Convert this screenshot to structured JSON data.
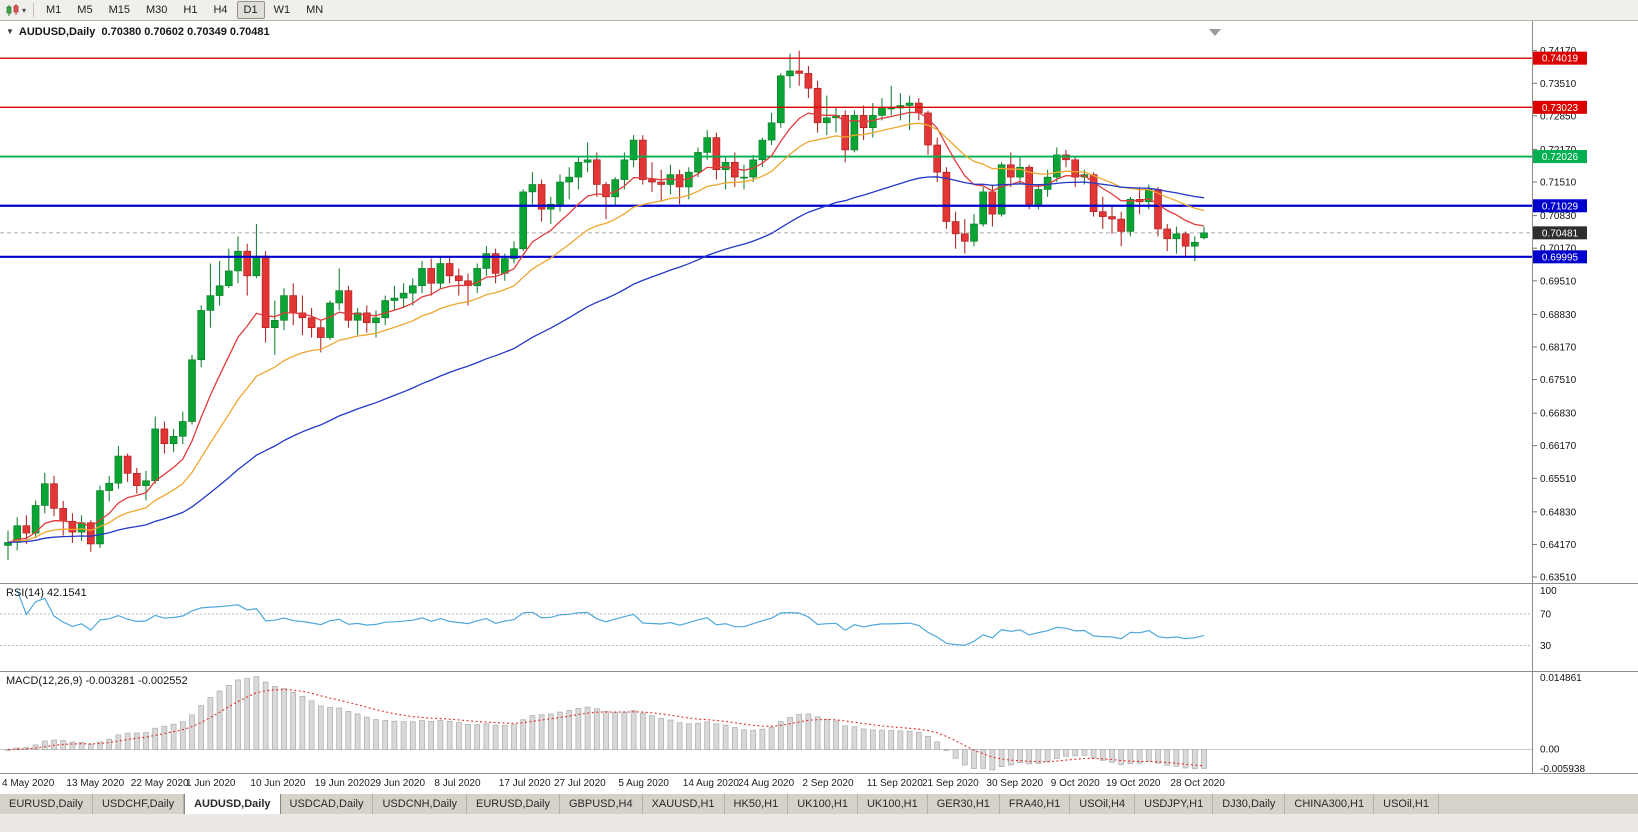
{
  "toolbar": {
    "chart_type_icon": "candlestick-chart-icon",
    "dropdown_icon": "chevron-down-icon",
    "timeframes": [
      "M1",
      "M5",
      "M15",
      "M30",
      "H1",
      "H4",
      "D1",
      "W1",
      "MN"
    ],
    "active_timeframe": "D1"
  },
  "chart_header": {
    "collapse_icon": "▼",
    "title": "AUDUSD,Daily  0.70380 0.70602 0.70349 0.70481"
  },
  "indicators": {
    "rsi_label": "RSI(14) 42.1541",
    "macd_label": "MACD(12,26,9) -0.003281 -0.002552"
  },
  "chart_data": {
    "type": "candlestick",
    "symbol": "AUDUSD",
    "timeframe": "Daily",
    "ohlc_display": {
      "open": "0.70380",
      "high": "0.70602",
      "low": "0.70349",
      "close": "0.70481"
    },
    "y_axis": {
      "min": 0.6347,
      "max": 0.7465,
      "tick_labels": [
        "0.74170",
        "0.73510",
        "0.72850",
        "0.72170",
        "0.71510",
        "0.70830",
        "0.70170",
        "0.69510",
        "0.68830",
        "0.68170",
        "0.67510",
        "0.66830",
        "0.66170",
        "0.65510",
        "0.64830",
        "0.64170",
        "0.63510"
      ]
    },
    "x_axis": {
      "tick_labels": [
        {
          "index": 0,
          "label": "4 May 2020"
        },
        {
          "index": 7,
          "label": "13 May 2020"
        },
        {
          "index": 14,
          "label": "22 May 2020"
        },
        {
          "index": 20,
          "label": "1 Jun 2020"
        },
        {
          "index": 27,
          "label": "10 Jun 2020"
        },
        {
          "index": 34,
          "label": "19 Jun 2020"
        },
        {
          "index": 40,
          "label": "29 Jun 2020"
        },
        {
          "index": 47,
          "label": "8 Jul 2020"
        },
        {
          "index": 54,
          "label": "17 Jul 2020"
        },
        {
          "index": 60,
          "label": "27 Jul 2020"
        },
        {
          "index": 67,
          "label": "5 Aug 2020"
        },
        {
          "index": 74,
          "label": "14 Aug 2020"
        },
        {
          "index": 80,
          "label": "24 Aug 2020"
        },
        {
          "index": 87,
          "label": "2 Sep 2020"
        },
        {
          "index": 94,
          "label": "11 Sep 2020"
        },
        {
          "index": 100,
          "label": "21 Sep 2020"
        },
        {
          "index": 107,
          "label": "30 Sep 2020"
        },
        {
          "index": 114,
          "label": "9 Oct 2020"
        },
        {
          "index": 120,
          "label": "19 Oct 2020"
        },
        {
          "index": 127,
          "label": "28 Oct 2020"
        }
      ]
    },
    "candles": [
      [
        0.6415,
        0.6445,
        0.6385,
        0.6421
      ],
      [
        0.6421,
        0.6472,
        0.6405,
        0.6455
      ],
      [
        0.6455,
        0.6476,
        0.6418,
        0.644
      ],
      [
        0.644,
        0.6506,
        0.643,
        0.6496
      ],
      [
        0.6496,
        0.6562,
        0.648,
        0.654
      ],
      [
        0.654,
        0.6556,
        0.6474,
        0.649
      ],
      [
        0.649,
        0.6505,
        0.6435,
        0.6464
      ],
      [
        0.6464,
        0.648,
        0.642,
        0.6442
      ],
      [
        0.6442,
        0.6476,
        0.6424,
        0.6461
      ],
      [
        0.6461,
        0.6466,
        0.6402,
        0.6418
      ],
      [
        0.6418,
        0.6536,
        0.641,
        0.6526
      ],
      [
        0.6526,
        0.6556,
        0.6504,
        0.6541
      ],
      [
        0.6541,
        0.6616,
        0.653,
        0.6596
      ],
      [
        0.6596,
        0.6601,
        0.6544,
        0.6561
      ],
      [
        0.6561,
        0.6572,
        0.652,
        0.6536
      ],
      [
        0.6536,
        0.6566,
        0.6506,
        0.6546
      ],
      [
        0.6546,
        0.6676,
        0.654,
        0.6651
      ],
      [
        0.6651,
        0.6666,
        0.6601,
        0.6621
      ],
      [
        0.6621,
        0.6651,
        0.6604,
        0.6636
      ],
      [
        0.6636,
        0.6686,
        0.662,
        0.6666
      ],
      [
        0.6666,
        0.6801,
        0.666,
        0.6791
      ],
      [
        0.6791,
        0.6901,
        0.6776,
        0.6891
      ],
      [
        0.6891,
        0.6986,
        0.6856,
        0.6921
      ],
      [
        0.6921,
        0.6991,
        0.6901,
        0.6941
      ],
      [
        0.6941,
        0.7016,
        0.6936,
        0.6971
      ],
      [
        0.6971,
        0.7041,
        0.6946,
        0.7011
      ],
      [
        0.7011,
        0.7026,
        0.6921,
        0.6961
      ],
      [
        0.6961,
        0.7066,
        0.6956,
        0.7001
      ],
      [
        0.7001,
        0.7011,
        0.6826,
        0.6856
      ],
      [
        0.6856,
        0.6911,
        0.6801,
        0.6871
      ],
      [
        0.6871,
        0.6936,
        0.6851,
        0.6921
      ],
      [
        0.6921,
        0.6946,
        0.6861,
        0.6886
      ],
      [
        0.6886,
        0.6921,
        0.6841,
        0.6876
      ],
      [
        0.6876,
        0.6896,
        0.6836,
        0.6856
      ],
      [
        0.6856,
        0.6871,
        0.6806,
        0.6836
      ],
      [
        0.6836,
        0.6911,
        0.6831,
        0.6906
      ],
      [
        0.6906,
        0.6976,
        0.6891,
        0.6931
      ],
      [
        0.6931,
        0.6941,
        0.6856,
        0.6871
      ],
      [
        0.6871,
        0.6896,
        0.6841,
        0.6886
      ],
      [
        0.6886,
        0.6901,
        0.6846,
        0.6866
      ],
      [
        0.6866,
        0.6891,
        0.6836,
        0.6876
      ],
      [
        0.6876,
        0.6921,
        0.6861,
        0.6911
      ],
      [
        0.6911,
        0.6941,
        0.6891,
        0.6916
      ],
      [
        0.6916,
        0.6946,
        0.6896,
        0.6926
      ],
      [
        0.6926,
        0.6956,
        0.6901,
        0.6941
      ],
      [
        0.6941,
        0.6991,
        0.6926,
        0.6976
      ],
      [
        0.6976,
        0.6996,
        0.6921,
        0.6946
      ],
      [
        0.6946,
        0.7001,
        0.6936,
        0.6986
      ],
      [
        0.6986,
        0.7001,
        0.6946,
        0.6961
      ],
      [
        0.6961,
        0.6976,
        0.6921,
        0.6951
      ],
      [
        0.6951,
        0.6966,
        0.6901,
        0.6941
      ],
      [
        0.6941,
        0.6986,
        0.6926,
        0.6976
      ],
      [
        0.6976,
        0.7021,
        0.6961,
        0.7006
      ],
      [
        0.7006,
        0.7016,
        0.6946,
        0.6966
      ],
      [
        0.6966,
        0.7006,
        0.6951,
        0.6996
      ],
      [
        0.6996,
        0.7031,
        0.6986,
        0.7016
      ],
      [
        0.7016,
        0.7136,
        0.7011,
        0.7131
      ],
      [
        0.7131,
        0.7171,
        0.7101,
        0.7146
      ],
      [
        0.7146,
        0.7156,
        0.7071,
        0.7096
      ],
      [
        0.7096,
        0.7121,
        0.7066,
        0.7106
      ],
      [
        0.7106,
        0.7166,
        0.7091,
        0.7151
      ],
      [
        0.7151,
        0.7181,
        0.7116,
        0.7161
      ],
      [
        0.7161,
        0.7201,
        0.7136,
        0.7191
      ],
      [
        0.7191,
        0.7231,
        0.7171,
        0.7196
      ],
      [
        0.7196,
        0.7211,
        0.7121,
        0.7146
      ],
      [
        0.7146,
        0.7151,
        0.7076,
        0.7121
      ],
      [
        0.7121,
        0.7161,
        0.7101,
        0.7156
      ],
      [
        0.7156,
        0.7211,
        0.7136,
        0.7196
      ],
      [
        0.7196,
        0.7246,
        0.7181,
        0.7236
      ],
      [
        0.7236,
        0.7246,
        0.7146,
        0.7156
      ],
      [
        0.7156,
        0.7191,
        0.7131,
        0.7151
      ],
      [
        0.7151,
        0.7176,
        0.7111,
        0.7146
      ],
      [
        0.7146,
        0.7186,
        0.7126,
        0.7166
      ],
      [
        0.7166,
        0.7176,
        0.7106,
        0.7141
      ],
      [
        0.7141,
        0.7181,
        0.7116,
        0.7171
      ],
      [
        0.7171,
        0.7221,
        0.7161,
        0.7211
      ],
      [
        0.7211,
        0.7256,
        0.7196,
        0.7241
      ],
      [
        0.7241,
        0.7251,
        0.7156,
        0.7176
      ],
      [
        0.7176,
        0.7201,
        0.7136,
        0.7191
      ],
      [
        0.7191,
        0.7211,
        0.7141,
        0.7161
      ],
      [
        0.7161,
        0.7186,
        0.7136,
        0.7161
      ],
      [
        0.7161,
        0.7206,
        0.7151,
        0.7196
      ],
      [
        0.7196,
        0.7241,
        0.7181,
        0.7236
      ],
      [
        0.7236,
        0.7291,
        0.7226,
        0.7271
      ],
      [
        0.7271,
        0.7371,
        0.7261,
        0.7366
      ],
      [
        0.7366,
        0.7411,
        0.7341,
        0.7376
      ],
      [
        0.7376,
        0.7417,
        0.7346,
        0.7371
      ],
      [
        0.7371,
        0.7386,
        0.7321,
        0.7341
      ],
      [
        0.7341,
        0.7356,
        0.7251,
        0.7271
      ],
      [
        0.7271,
        0.7326,
        0.7246,
        0.7281
      ],
      [
        0.7281,
        0.7301,
        0.7251,
        0.7286
      ],
      [
        0.7286,
        0.7296,
        0.7191,
        0.7216
      ],
      [
        0.7216,
        0.7296,
        0.7211,
        0.7286
      ],
      [
        0.7286,
        0.7306,
        0.7236,
        0.7261
      ],
      [
        0.7261,
        0.7311,
        0.7241,
        0.7286
      ],
      [
        0.7286,
        0.7321,
        0.7276,
        0.7301
      ],
      [
        0.7301,
        0.7346,
        0.7286,
        0.7301
      ],
      [
        0.7301,
        0.7331,
        0.7276,
        0.7306
      ],
      [
        0.7306,
        0.7326,
        0.7256,
        0.7311
      ],
      [
        0.7311,
        0.7321,
        0.7276,
        0.7291
      ],
      [
        0.7291,
        0.7296,
        0.7206,
        0.7226
      ],
      [
        0.7226,
        0.7241,
        0.7151,
        0.7171
      ],
      [
        0.7171,
        0.7181,
        0.7056,
        0.7071
      ],
      [
        0.7071,
        0.7091,
        0.7016,
        0.7046
      ],
      [
        0.7046,
        0.7076,
        0.7006,
        0.7031
      ],
      [
        0.7031,
        0.7086,
        0.7021,
        0.7066
      ],
      [
        0.7066,
        0.7141,
        0.7061,
        0.7131
      ],
      [
        0.7131,
        0.7146,
        0.7061,
        0.7086
      ],
      [
        0.7086,
        0.7191,
        0.7081,
        0.7186
      ],
      [
        0.7186,
        0.7211,
        0.7141,
        0.7161
      ],
      [
        0.7161,
        0.7201,
        0.7146,
        0.7181
      ],
      [
        0.7181,
        0.7186,
        0.7096,
        0.7106
      ],
      [
        0.7106,
        0.7146,
        0.7096,
        0.7136
      ],
      [
        0.7136,
        0.7176,
        0.7121,
        0.7161
      ],
      [
        0.7161,
        0.7221,
        0.7151,
        0.7206
      ],
      [
        0.7206,
        0.7216,
        0.7181,
        0.7196
      ],
      [
        0.7196,
        0.7201,
        0.7141,
        0.7161
      ],
      [
        0.7161,
        0.7176,
        0.7146,
        0.7166
      ],
      [
        0.7166,
        0.7171,
        0.7081,
        0.7091
      ],
      [
        0.7091,
        0.7121,
        0.7056,
        0.7081
      ],
      [
        0.7081,
        0.7101,
        0.7046,
        0.7076
      ],
      [
        0.7076,
        0.7091,
        0.7021,
        0.7051
      ],
      [
        0.7051,
        0.7121,
        0.7041,
        0.7116
      ],
      [
        0.7116,
        0.7141,
        0.7086,
        0.7111
      ],
      [
        0.7111,
        0.7146,
        0.7096,
        0.7136
      ],
      [
        0.7136,
        0.7141,
        0.7041,
        0.7056
      ],
      [
        0.7056,
        0.7066,
        0.7011,
        0.7036
      ],
      [
        0.7036,
        0.7061,
        0.7006,
        0.7046
      ],
      [
        0.7046,
        0.7051,
        0.6998,
        0.7021
      ],
      [
        0.7021,
        0.7041,
        0.6991,
        0.7029
      ],
      [
        0.7038,
        0.70602,
        0.70349,
        0.70481
      ]
    ],
    "candle_colors": {
      "up": "#0ba334",
      "up_border": "#067a26",
      "down": "#e23535",
      "down_border": "#a81818"
    },
    "moving_averages": [
      {
        "name": "fast-ma",
        "period": 10,
        "color": "#e03c3c"
      },
      {
        "name": "medium-ma",
        "period": 21,
        "color": "#efa62f"
      },
      {
        "name": "slow-ma",
        "period": 55,
        "color": "#2438c8"
      }
    ],
    "levels": [
      {
        "price": 0.74019,
        "label": "0.74019",
        "color": "#dd0000",
        "width": 1.4
      },
      {
        "price": 0.73023,
        "label": "0.73023",
        "color": "#dd0000",
        "width": 1.4
      },
      {
        "price": 0.72026,
        "label": "0.72026",
        "color": "#00b050",
        "width": 1.8
      },
      {
        "price": 0.71029,
        "label": "0.71029",
        "color": "#0000cc",
        "width": 2.2
      },
      {
        "price": 0.69995,
        "label": "0.69995",
        "color": "#0000cc",
        "width": 2.2
      }
    ],
    "current_price": {
      "price": 0.70481,
      "label": "0.70481",
      "color": "#2e2e2e"
    },
    "rsi": {
      "period": 14,
      "value_display": "42.1541",
      "color": "#4fa8dc",
      "axis_labels": [
        {
          "value": 100,
          "label": "100"
        },
        {
          "value": 70,
          "label": "70"
        },
        {
          "value": 30,
          "label": "30"
        }
      ],
      "level_lines": [
        70,
        30
      ]
    },
    "macd": {
      "fast": 12,
      "slow": 26,
      "signal": 9,
      "values_display": "-0.003281 -0.002552",
      "axis_labels": {
        "top": "0.014861",
        "zero": "0.00",
        "bottom": "-0.005938"
      },
      "histogram_color": "#d9d9d9",
      "histogram_border": "#ababab",
      "signal_color": "#e03030"
    }
  },
  "tabs": {
    "active_index": 2,
    "items": [
      "EURUSD,Daily",
      "USDCHF,Daily",
      "AUDUSD,Daily",
      "USDCAD,Daily",
      "USDCNH,Daily",
      "EURUSD,Daily",
      "GBPUSD,H4",
      "XAUUSD,H1",
      "HK50,H1",
      "UK100,H1",
      "UK100,H1",
      "GER30,H1",
      "FRA40,H1",
      "USOil,H4",
      "USDJPY,H1",
      "DJ30,Daily",
      "CHINA300,H1",
      "USOil,H1"
    ]
  }
}
